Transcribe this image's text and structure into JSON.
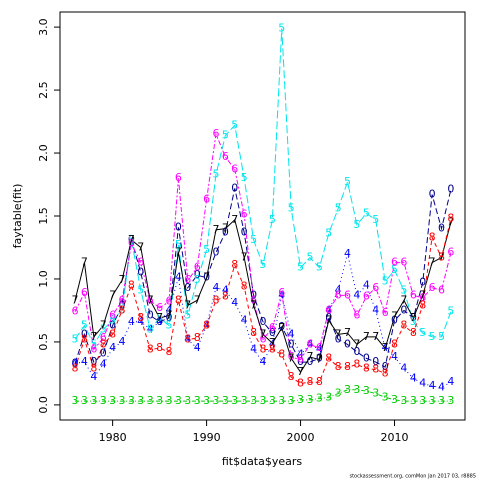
{
  "chart_data": {
    "type": "matplot",
    "xlabel": "fit$data$years",
    "ylabel": "faytable(fit)",
    "footer": "stockassessment.org, comMon Jan 2017 03, r8885",
    "x": [
      1976,
      1977,
      1978,
      1979,
      1980,
      1981,
      1982,
      1983,
      1984,
      1985,
      1986,
      1987,
      1988,
      1989,
      1990,
      1991,
      1992,
      1993,
      1994,
      1995,
      1996,
      1997,
      1998,
      1999,
      2000,
      2001,
      2002,
      2003,
      2004,
      2005,
      2006,
      2007,
      2008,
      2009,
      2010,
      2011,
      2012,
      2013,
      2014,
      2015,
      2016
    ],
    "xlim": [
      1974.4,
      2017.5
    ],
    "xticks": [
      1980,
      1990,
      2000,
      2010
    ],
    "ylim": [
      -0.12,
      3.12
    ],
    "yticks": [
      {
        "value": 0,
        "label": "0.0"
      },
      0.5,
      {
        "value": 1,
        "label": "1.0"
      },
      1.5,
      {
        "value": 2,
        "label": "2.0"
      },
      2.5,
      {
        "value": 3,
        "label": "3.0"
      }
    ],
    "series": [
      {
        "name": "0",
        "color": "#00008b",
        "values": [
          0.33,
          0.56,
          0.34,
          0.41,
          0.63,
          0.79,
          1.31,
          1.05,
          0.71,
          0.66,
          0.69,
          1.41,
          0.93,
          1.03,
          1.01,
          1.21,
          1.37,
          1.72,
          1.37,
          0.87,
          0.66,
          0.57,
          0.62,
          0.48,
          0.34,
          0.34,
          0.37,
          0.69,
          0.52,
          0.48,
          0.42,
          0.37,
          0.34,
          0.3,
          0.67,
          0.75,
          0.69,
          0.97,
          1.67,
          1.4,
          1.71
        ]
      },
      {
        "name": "3",
        "color": "#00cd00",
        "values": [
          0.03,
          0.03,
          0.03,
          0.03,
          0.03,
          0.03,
          0.03,
          0.03,
          0.03,
          0.03,
          0.03,
          0.03,
          0.03,
          0.03,
          0.03,
          0.03,
          0.03,
          0.03,
          0.03,
          0.03,
          0.03,
          0.03,
          0.03,
          0.03,
          0.04,
          0.04,
          0.05,
          0.06,
          0.09,
          0.12,
          0.12,
          0.11,
          0.09,
          0.06,
          0.04,
          0.03,
          0.03,
          0.03,
          0.03,
          0.03,
          0.03
        ]
      },
      {
        "name": "4",
        "color": "#0000ff",
        "values": [
          0.33,
          0.34,
          0.22,
          0.32,
          0.45,
          0.5,
          0.66,
          0.66,
          0.6,
          0.66,
          0.75,
          1.01,
          0.52,
          0.45,
          0.63,
          0.93,
          0.91,
          0.81,
          0.67,
          0.44,
          0.34,
          0.48,
          0.87,
          0.56,
          0.4,
          0.48,
          0.44,
          0.75,
          0.91,
          1.2,
          0.87,
          0.95,
          0.75,
          0.45,
          0.38,
          0.29,
          0.21,
          0.17,
          0.15,
          0.14,
          0.18
        ]
      },
      {
        "name": "5",
        "color": "#00e5ee",
        "values": [
          0.52,
          0.63,
          0.48,
          0.6,
          0.67,
          0.75,
          1.31,
          0.91,
          0.6,
          0.69,
          0.63,
          1.27,
          0.71,
          0.99,
          1.23,
          1.83,
          2.14,
          2.22,
          1.8,
          1.31,
          1.11,
          1.47,
          2.99,
          1.56,
          1.09,
          1.17,
          1.09,
          1.36,
          1.56,
          1.77,
          1.43,
          1.52,
          1.47,
          0.98,
          1.07,
          0.91,
          0.66,
          0.57,
          0.54,
          0.54,
          0.74
        ]
      },
      {
        "name": "6",
        "color": "#ff00ff",
        "values": [
          0.74,
          0.89,
          0.44,
          0.53,
          0.71,
          0.83,
          1.28,
          1.13,
          0.83,
          0.77,
          0.82,
          1.8,
          0.99,
          1.09,
          1.63,
          2.15,
          1.97,
          1.87,
          1.51,
          0.83,
          0.52,
          0.61,
          0.89,
          0.38,
          0.36,
          0.48,
          0.45,
          0.75,
          0.87,
          0.87,
          0.71,
          0.86,
          0.93,
          0.73,
          1.13,
          1.13,
          0.87,
          0.85,
          0.93,
          0.91,
          1.21
        ]
      },
      {
        "name": "7",
        "color": "#000000",
        "values": [
          0.83,
          1.13,
          0.54,
          0.63,
          0.87,
          0.99,
          1.31,
          1.25,
          0.83,
          0.69,
          0.71,
          1.21,
          0.79,
          0.83,
          1.01,
          1.39,
          1.4,
          1.47,
          1.17,
          0.79,
          0.56,
          0.49,
          0.61,
          0.37,
          0.26,
          0.38,
          0.36,
          0.67,
          0.56,
          0.57,
          0.48,
          0.54,
          0.54,
          0.45,
          0.7,
          0.83,
          0.69,
          0.87,
          1.13,
          1.17,
          1.45
        ]
      },
      {
        "name": "8",
        "color": "#ff0000",
        "values": [
          0.29,
          0.52,
          0.29,
          0.48,
          0.56,
          0.75,
          0.95,
          0.69,
          0.44,
          0.45,
          0.42,
          0.83,
          0.52,
          0.53,
          0.63,
          0.83,
          0.86,
          1.11,
          0.94,
          0.57,
          0.44,
          0.44,
          0.4,
          0.22,
          0.17,
          0.18,
          0.18,
          0.37,
          0.3,
          0.3,
          0.32,
          0.29,
          0.28,
          0.25,
          0.48,
          0.63,
          0.57,
          0.79,
          1.33,
          1.17,
          1.48
        ]
      }
    ]
  }
}
